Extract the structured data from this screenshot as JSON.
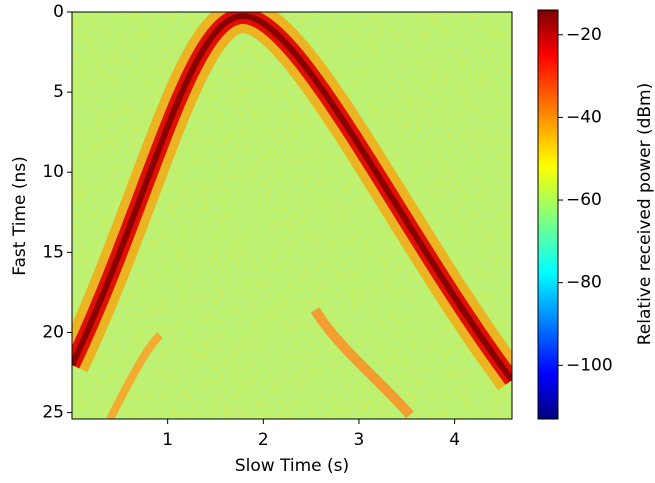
{
  "chart_data": {
    "type": "heatmap",
    "colormap": "jet",
    "x_label": "Slow Time (s)",
    "y_label": "Fast Time (ns)",
    "xlim": [
      0,
      4.6
    ],
    "xticks": [
      1,
      2,
      3,
      4
    ],
    "ylim": [
      0,
      25.4
    ],
    "y_inverted": true,
    "yticks": [
      0,
      5,
      10,
      15,
      20,
      25
    ],
    "colorbar": {
      "label": "Relative received power (dBm)",
      "lim": [
        -113,
        -14
      ],
      "ticks": [
        {
          "value": -20,
          "label": "−20"
        },
        {
          "value": -40,
          "label": "−40"
        },
        {
          "value": -60,
          "label": "−60"
        },
        {
          "value": -80,
          "label": "−80"
        },
        {
          "value": -100,
          "label": "−100"
        }
      ]
    }
  }
}
